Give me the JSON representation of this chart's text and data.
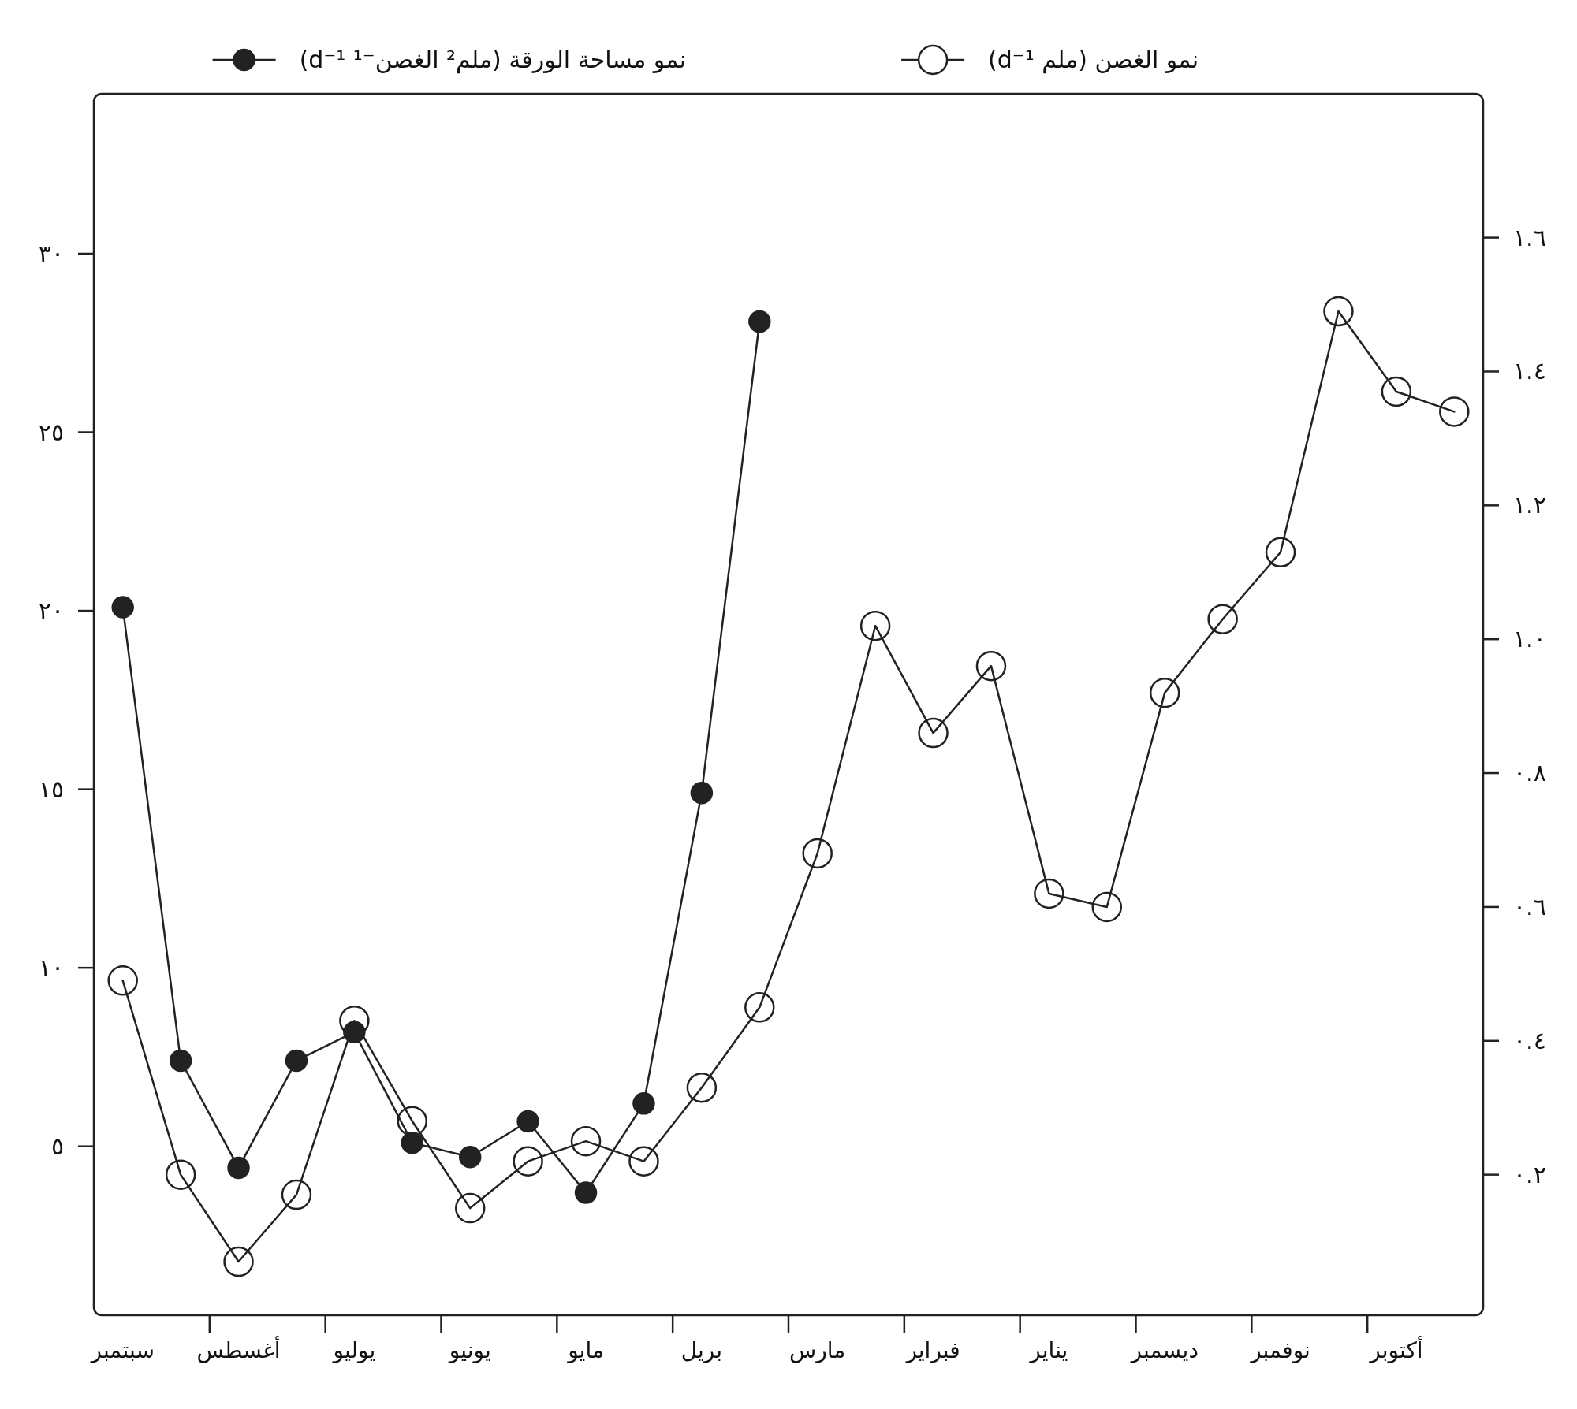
{
  "chart_data": {
    "type": "line",
    "categories": [
      "سبتمبر",
      null,
      "أغسطس",
      null,
      "يوليو",
      null,
      "يونيو",
      null,
      "مايو",
      null,
      "بريل",
      null,
      "مارس",
      null,
      "فبراير",
      null,
      "يناير",
      null,
      "ديسمبر",
      null,
      "نوفمبر",
      null,
      "أكتوبر",
      null
    ],
    "series": [
      {
        "name": "نمو مساحة الورقة (ملم² الغصن⁻¹ d⁻¹)",
        "color": "#222222",
        "marker": "circle",
        "axis": "y",
        "values": [
          20.1,
          7.4,
          4.4,
          7.4,
          8.2,
          5.1,
          4.7,
          5.7,
          3.7,
          6.2,
          14.9,
          28.1,
          null,
          null,
          null,
          null,
          null,
          null,
          null,
          null,
          null,
          null,
          null,
          null
        ]
      },
      {
        "name": "نمو الغصن (ملم d⁻¹)",
        "color": "#222222",
        "marker": "circle",
        "colors": [
          "#ffffff",
          "#ffffff",
          "#ffffff",
          "#ffffff",
          "#ffffff",
          "#ffffff",
          "#ffffff",
          "#ffffff",
          "#ffffff",
          "#ffffff",
          "#ffffff",
          "#ffffff",
          "#ffffff",
          "#ffffff",
          "#ffffff",
          "#ffffff",
          "#ffffff",
          "#ffffff",
          "#ffffff",
          "#ffffff",
          "#ffffff",
          "#ffffff",
          "#ffffff",
          "#ffffff"
        ],
        "axis": "y2",
        "values": [
          0.49,
          0.2,
          0.07,
          0.17,
          0.43,
          0.28,
          0.15,
          0.22,
          0.25,
          0.22,
          0.33,
          0.45,
          0.68,
          1.02,
          0.86,
          0.96,
          0.62,
          0.6,
          0.92,
          1.03,
          1.13,
          1.49,
          1.37,
          1.34
        ]
      }
    ],
    "ylim": [
      0.27,
      34.48
    ],
    "yticks": [
      {
        "value": 5,
        "label": "٥"
      },
      {
        "value": 10,
        "label": "١٠"
      },
      {
        "value": 15,
        "label": "١٥"
      },
      {
        "value": 20,
        "label": "٢٠"
      },
      {
        "value": 25,
        "label": "٢٥"
      },
      {
        "value": 30,
        "label": "٣٠"
      }
    ],
    "y2lim": [
      -0.01,
      1.815
    ],
    "y2ticks": [
      {
        "value": 0.2,
        "label": "٠.٢"
      },
      {
        "value": 0.4,
        "label": "٠.٤"
      },
      {
        "value": 0.6,
        "label": "٠.٦"
      },
      {
        "value": 0.8,
        "label": "٠.٨"
      },
      {
        "value": 1.0,
        "label": "١.٠"
      },
      {
        "value": 1.2,
        "label": "١.٢"
      },
      {
        "value": 1.4,
        "label": "١.٤"
      },
      {
        "value": 1.6,
        "label": "١.٦"
      }
    ],
    "legend": "top",
    "grid": false,
    "line_style": "solid"
  }
}
